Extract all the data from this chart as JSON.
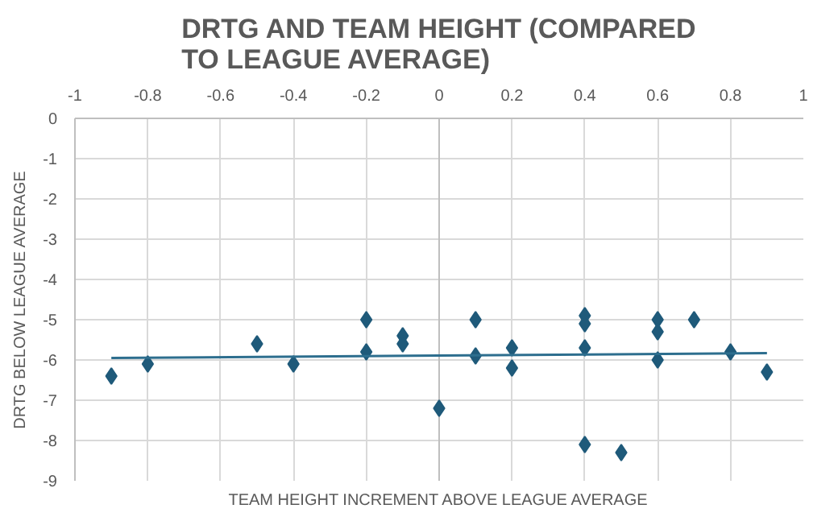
{
  "chart_data": {
    "type": "scatter",
    "title": "DRTG AND TEAM HEIGHT (COMPARED\nTO LEAGUE AVERAGE)",
    "xlabel": "TEAM HEIGHT INCREMENT ABOVE LEAGUE AVERAGE",
    "ylabel": "DRTG BELOW LEAGUE AVERAGE",
    "xlim": [
      -1,
      1
    ],
    "ylim": [
      -9,
      0
    ],
    "xticks": [
      {
        "value": -1,
        "label": "-1"
      },
      {
        "value": -0.8,
        "label": "-0.8"
      },
      {
        "value": -0.6,
        "label": "-0.6"
      },
      {
        "value": -0.4,
        "label": "-0.4"
      },
      {
        "value": -0.2,
        "label": "-0.2"
      },
      {
        "value": 0,
        "label": "0"
      },
      {
        "value": 0.2,
        "label": "0.2"
      },
      {
        "value": 0.4,
        "label": "0.4"
      },
      {
        "value": 0.6,
        "label": "0.6"
      },
      {
        "value": 0.8,
        "label": "0.8"
      },
      {
        "value": 1,
        "label": "1"
      }
    ],
    "yticks": [
      0,
      -1,
      -2,
      -3,
      -4,
      -5,
      -6,
      -7,
      -8,
      -9
    ],
    "grid": true,
    "series": [
      {
        "type": "scatter",
        "marker": "diamond",
        "color": "#1f5a7a",
        "x": [
          -0.9,
          -0.8,
          -0.5,
          -0.4,
          -0.2,
          -0.2,
          -0.1,
          -0.1,
          0,
          0.1,
          0.1,
          0.2,
          0.2,
          0.4,
          0.4,
          0.4,
          0.4,
          0.5,
          0.6,
          0.6,
          0.6,
          0.7,
          0.8,
          0.9
        ],
        "values": [
          -6.4,
          -6.1,
          -5.6,
          -6.1,
          -5.0,
          -5.8,
          -5.4,
          -5.6,
          -7.2,
          -5.0,
          -5.9,
          -5.7,
          -6.2,
          -4.9,
          -5.1,
          -5.7,
          -8.1,
          -8.3,
          -5.0,
          -5.3,
          -6.0,
          -5.0,
          -5.8,
          -6.3
        ]
      },
      {
        "type": "line",
        "color": "#2d6e8e",
        "x": [
          -0.9,
          0.9
        ],
        "values": [
          -5.95,
          -5.83
        ]
      }
    ]
  }
}
